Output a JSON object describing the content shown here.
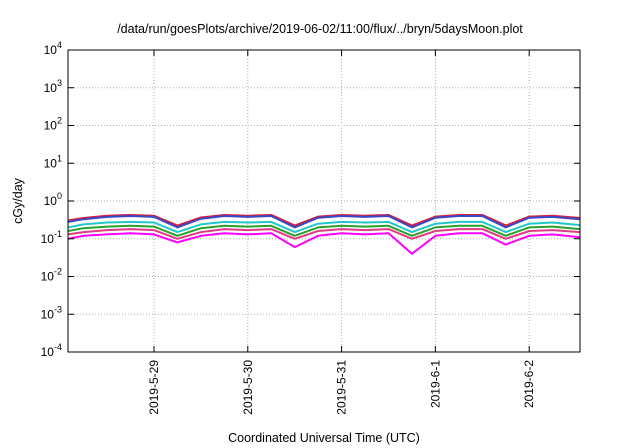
{
  "chart_data": {
    "type": "line",
    "title": "/data/run/goesPlots/archive/2019-06-02/11:00/flux/../bryn/5daysMoon.plot",
    "xlabel": "Coordinated Universal Time (UTC)",
    "ylabel": "cGy/day",
    "yscale": "log",
    "ylim": [
      0.0001,
      10000
    ],
    "xlim": [
      "2019-05-28 02:00",
      "2019-06-02 13:00"
    ],
    "grid": true,
    "y_ticks": [
      {
        "mant": "10",
        "exp": "-4"
      },
      {
        "mant": "10",
        "exp": "-3"
      },
      {
        "mant": "10",
        "exp": "-2"
      },
      {
        "mant": "10",
        "exp": "-1"
      },
      {
        "mant": "10",
        "exp": "0"
      },
      {
        "mant": "10",
        "exp": "1"
      },
      {
        "mant": "10",
        "exp": "2"
      },
      {
        "mant": "10",
        "exp": "3"
      },
      {
        "mant": "10",
        "exp": "4"
      }
    ],
    "x_ticks": [
      "2019-5-29",
      "2019-5-30",
      "2019-5-31",
      "2019-6-1",
      "2019-6-2"
    ],
    "x": [
      "2019-05-28 02:00",
      "2019-05-28 06:00",
      "2019-05-28 12:00",
      "2019-05-28 18:00",
      "2019-05-29 00:00",
      "2019-05-29 06:00",
      "2019-05-29 12:00",
      "2019-05-29 18:00",
      "2019-05-30 00:00",
      "2019-05-30 06:00",
      "2019-05-30 12:00",
      "2019-05-30 18:00",
      "2019-05-31 00:00",
      "2019-05-31 06:00",
      "2019-05-31 12:00",
      "2019-05-31 18:00",
      "2019-06-01 00:00",
      "2019-06-01 06:00",
      "2019-06-01 12:00",
      "2019-06-01 18:00",
      "2019-06-02 00:00",
      "2019-06-02 06:00",
      "2019-06-02 13:00"
    ],
    "series": [
      {
        "color": "#d4203c",
        "values": [
          0.3,
          0.35,
          0.4,
          0.42,
          0.4,
          0.22,
          0.36,
          0.42,
          0.4,
          0.42,
          0.22,
          0.38,
          0.42,
          0.4,
          0.42,
          0.22,
          0.38,
          0.42,
          0.42,
          0.22,
          0.38,
          0.4,
          0.35
        ]
      },
      {
        "color": "#3a48c8",
        "values": [
          0.28,
          0.33,
          0.38,
          0.4,
          0.38,
          0.2,
          0.34,
          0.4,
          0.38,
          0.4,
          0.2,
          0.36,
          0.4,
          0.38,
          0.4,
          0.2,
          0.36,
          0.4,
          0.4,
          0.2,
          0.36,
          0.38,
          0.33
        ]
      },
      {
        "color": "#22c8c8",
        "values": [
          0.2,
          0.24,
          0.27,
          0.28,
          0.27,
          0.15,
          0.24,
          0.28,
          0.27,
          0.28,
          0.15,
          0.25,
          0.28,
          0.27,
          0.28,
          0.15,
          0.25,
          0.28,
          0.28,
          0.15,
          0.25,
          0.27,
          0.23
        ]
      },
      {
        "color": "#2ca02c",
        "values": [
          0.16,
          0.19,
          0.21,
          0.22,
          0.21,
          0.12,
          0.19,
          0.22,
          0.21,
          0.22,
          0.12,
          0.2,
          0.22,
          0.21,
          0.22,
          0.12,
          0.2,
          0.22,
          0.22,
          0.12,
          0.2,
          0.21,
          0.18
        ]
      },
      {
        "color": "#e03c82",
        "values": [
          0.13,
          0.15,
          0.17,
          0.18,
          0.17,
          0.1,
          0.15,
          0.18,
          0.17,
          0.18,
          0.1,
          0.16,
          0.18,
          0.17,
          0.18,
          0.1,
          0.16,
          0.18,
          0.18,
          0.1,
          0.16,
          0.17,
          0.15
        ]
      },
      {
        "color": "#ff00ff",
        "values": [
          0.1,
          0.12,
          0.13,
          0.14,
          0.13,
          0.08,
          0.12,
          0.14,
          0.13,
          0.14,
          0.06,
          0.12,
          0.14,
          0.13,
          0.14,
          0.04,
          0.12,
          0.14,
          0.14,
          0.07,
          0.12,
          0.13,
          0.11
        ]
      }
    ]
  }
}
